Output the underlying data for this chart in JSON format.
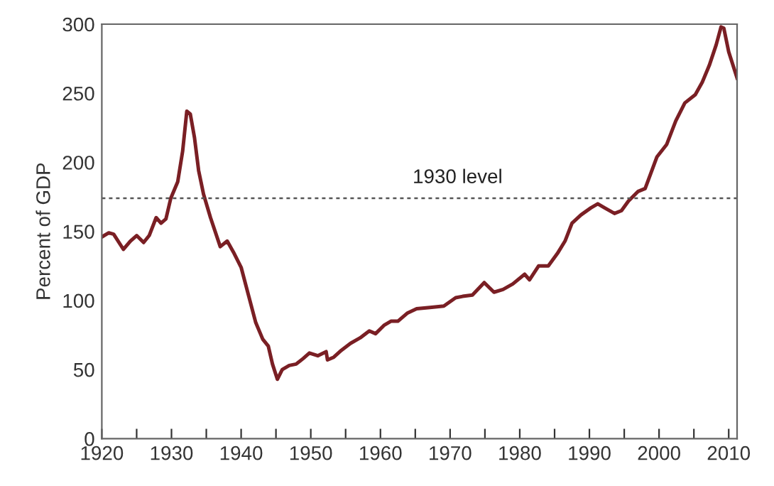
{
  "chart_data": {
    "type": "line",
    "ylabel": "Percent of GDP",
    "x": [
      1920,
      1921,
      1921.7,
      1923.1,
      1924.1,
      1925,
      1926,
      1926.8,
      1927.8,
      1928.5,
      1929.2,
      1929.9,
      1930.9,
      1931.6,
      1932.2,
      1932.7,
      1933.3,
      1933.9,
      1934.6,
      1935.6,
      1937,
      1938,
      1939,
      1940,
      1941.1,
      1942.1,
      1943.1,
      1943.9,
      1944.5,
      1945.2,
      1945.9,
      1946.9,
      1947.9,
      1948.9,
      1949.8,
      1951,
      1952.2,
      1952.4,
      1953.3,
      1954.4,
      1955.7,
      1957.1,
      1958.4,
      1959.3,
      1960.5,
      1961.5,
      1962.5,
      1963.9,
      1965.2,
      1967.1,
      1969.1,
      1970.8,
      1971.8,
      1973.2,
      1974.9,
      1976.3,
      1977.6,
      1979,
      1980.7,
      1981.4,
      1982.7,
      1984.1,
      1985.4,
      1986.5,
      1987.5,
      1988.8,
      1990.2,
      1991.2,
      1992.2,
      1993.6,
      1994.6,
      1995.6,
      1997,
      1998,
      1999.7,
      2001.1,
      2002.4,
      2003.7,
      2005.2,
      2006.2,
      2007.2,
      2008.2,
      2008.9,
      2009.3,
      2010,
      2011.2
    ],
    "series": [
      {
        "color": "#7a1f24",
        "values": [
          146,
          149,
          148,
          137,
          143,
          147,
          142,
          147,
          160,
          156,
          159,
          174,
          186,
          208,
          237,
          235,
          218,
          194,
          177,
          160,
          139,
          143,
          134,
          124,
          103,
          84,
          72,
          67,
          54,
          43,
          50,
          53,
          54,
          58,
          62,
          60,
          63,
          57,
          59,
          64,
          69,
          73,
          78,
          76,
          82,
          85,
          85,
          91,
          94,
          95,
          96,
          102,
          103,
          104,
          113,
          106,
          108,
          112,
          119,
          115,
          125,
          125,
          134,
          143,
          156,
          162,
          167,
          170,
          167,
          163,
          165,
          172,
          179,
          181,
          204,
          213,
          230,
          243,
          249,
          258,
          270,
          285,
          298,
          297,
          280,
          261
        ]
      }
    ],
    "xlim": [
      1920,
      2011.2
    ],
    "xticks": [
      1920,
      {
        "value": 1925,
        "label": null
      },
      1930,
      {
        "value": 1935,
        "label": null
      },
      1940,
      {
        "value": 1945,
        "label": null
      },
      1950,
      {
        "value": 1955,
        "label": null
      },
      1960,
      {
        "value": 1965,
        "label": null
      },
      1970,
      {
        "value": 1975,
        "label": null
      },
      1980,
      {
        "value": 1985,
        "label": null
      },
      1990,
      {
        "value": 1995,
        "label": null
      },
      2000,
      {
        "value": 2005,
        "label": null
      },
      2010
    ],
    "ylim": [
      0,
      300
    ],
    "yticks": [
      0,
      50,
      100,
      150,
      200,
      250,
      300
    ],
    "ref_lines": [
      {
        "axis": "y",
        "value": 174,
        "label": "1930 level",
        "color": "#555555",
        "line_style": "dotted"
      }
    ],
    "grid": false,
    "legend": false,
    "marker": "none",
    "line_style": "solid"
  }
}
